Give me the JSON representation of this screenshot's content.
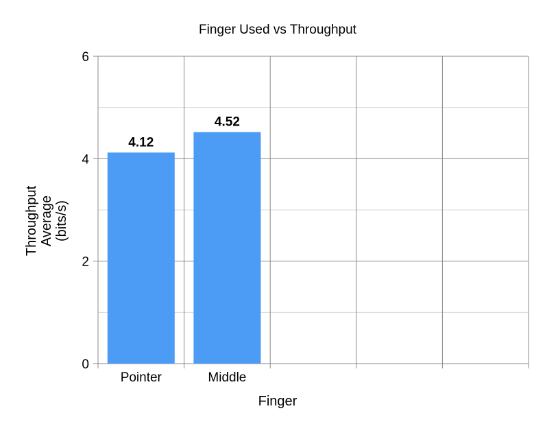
{
  "chart_data": {
    "type": "bar",
    "title": "Finger Used vs Throughput",
    "xlabel": "Finger",
    "ylabel": [
      "Throughput",
      "Average",
      "(bits/s)"
    ],
    "categories": [
      "Pointer",
      "Middle"
    ],
    "values": [
      4.12,
      4.52
    ],
    "data_labels": [
      "4.12",
      "4.52"
    ],
    "ylim": [
      0,
      6
    ],
    "yticks": [
      0,
      2,
      4,
      6
    ],
    "ytick_labels": [
      "0",
      "2",
      "4",
      "6"
    ],
    "x_slots": 5,
    "grid": true,
    "legend": "none",
    "bar_color": "#4c9bf5",
    "grid_major_color": "#888888",
    "grid_minor_color": "#d9d9d9"
  }
}
